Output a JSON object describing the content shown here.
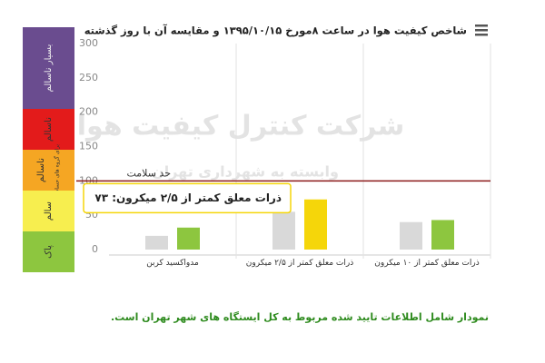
{
  "chart_data": {
    "type": "bar",
    "title": "شاخص کیفیت هوا در ساعت ۸مورخ ۱۳۹۵/۱۰/۱۵ و مقایسه آن با روز گذشته",
    "categories": [
      "مدواکسید کربن",
      "ذرات معلق کمتر از ۲/۵ میکرون",
      "ذرات معلق کمتر از ۱۰ میکرون"
    ],
    "series": [
      {
        "color": "#d9d9d9",
        "values": [
          20,
          55,
          40
        ]
      },
      {
        "colors": [
          "#8dc63f",
          "#f5d60a",
          "#8dc63f"
        ],
        "values": [
          32,
          73,
          43
        ]
      }
    ],
    "ylim": [
      0,
      300
    ],
    "yticks": [
      0,
      50,
      100,
      150,
      200,
      250,
      300
    ],
    "bands": [
      {
        "from": 200,
        "to": 300,
        "label": "بسیار ناسالم",
        "color": "#6a4c8f"
      },
      {
        "from": 150,
        "to": 200,
        "label": "ناسالم",
        "color": "#e31b1b"
      },
      {
        "from": 100,
        "to": 150,
        "label": "ناسالم",
        "sublabel": "برای گروه های حساس",
        "color": "#f5a623"
      },
      {
        "from": 50,
        "to": 100,
        "label": "سالم",
        "color": "#f7ee4f"
      },
      {
        "from": 0,
        "to": 50,
        "label": "پاک",
        "color": "#8dc63f"
      }
    ],
    "threshold": {
      "value": 100,
      "label": "حد سلامت",
      "color": "#8b1a1a"
    },
    "tooltip": "ذرات معلق کمتر از ۲/۵ میکرون: ۷۳",
    "watermark": [
      "شرکت کنترل کیفیت هوا",
      "وابسته به شهرداری تهران"
    ],
    "note": "نمودار شامل اطلاعات تایید شده مربوط به کل ایستگاه های شهر تهران است."
  }
}
